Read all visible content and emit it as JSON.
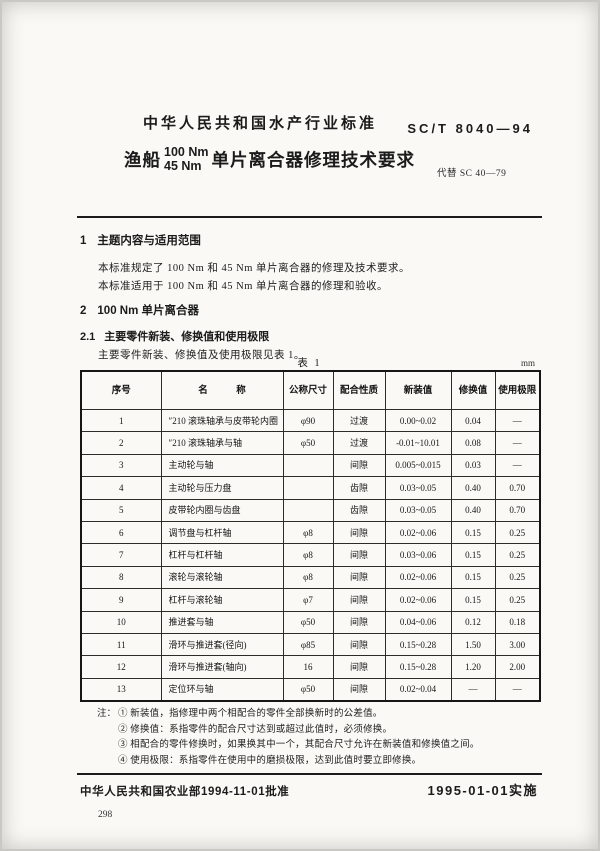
{
  "header": {
    "standard_type": "中华人民共和国水产行业标准",
    "standard_no": "SC/T 8040—94",
    "title_prefix": "渔船",
    "torque_top": "100 Nm",
    "torque_bottom": "45 Nm",
    "title_suffix": "单片离合器修理技术要求",
    "replaces": "代替 SC 40—79"
  },
  "section1": {
    "no": "1",
    "title": "主题内容与适用范围",
    "para1": "本标准规定了 100 Nm 和 45 Nm 单片离合器的修理及技术要求。",
    "para2": "本标准适用于 100 Nm 和 45 Nm 单片离合器的修理和验收。"
  },
  "section2": {
    "no": "2",
    "title": "100 Nm 单片离合器"
  },
  "section2_1": {
    "no": "2.1",
    "title": "主要零件新装、修换值和使用极限",
    "para": "主要零件新装、修换值及使用极限见表 1。"
  },
  "table": {
    "caption": "表 1",
    "unit": "mm",
    "headers": [
      "序号",
      "名　　　称",
      "公称尺寸",
      "配合性质",
      "新装值",
      "修换值",
      "使用极限"
    ],
    "col_keys": [
      "index",
      "name",
      "nominal-size",
      "fit-type",
      "new-value",
      "replace-value",
      "use-limit"
    ],
    "rows": [
      [
        "1",
        "″210 滚珠轴承与皮带轮内圈",
        "φ90",
        "过渡",
        "0.00~0.02",
        "0.04",
        "—"
      ],
      [
        "2",
        "″210 滚珠轴承与轴",
        "φ50",
        "过渡",
        "-0.01~10.01",
        "0.08",
        "—"
      ],
      [
        "3",
        "主动轮与轴",
        "",
        "间隙",
        "0.005~0.015",
        "0.03",
        "—"
      ],
      [
        "4",
        "主动轮与压力盘",
        "",
        "齿隙",
        "0.03~0.05",
        "0.40",
        "0.70"
      ],
      [
        "5",
        "皮带轮内圈与齿盘",
        "",
        "齿隙",
        "0.03~0.05",
        "0.40",
        "0.70"
      ],
      [
        "6",
        "调节盘与杠杆轴",
        "φ8",
        "间隙",
        "0.02~0.06",
        "0.15",
        "0.25"
      ],
      [
        "7",
        "杠杆与杠杆轴",
        "φ8",
        "间隙",
        "0.03~0.06",
        "0.15",
        "0.25"
      ],
      [
        "8",
        "滚轮与滚轮轴",
        "φ8",
        "间隙",
        "0.02~0.06",
        "0.15",
        "0.25"
      ],
      [
        "9",
        "杠杆与滚轮轴",
        "φ7",
        "间隙",
        "0.02~0.06",
        "0.15",
        "0.25"
      ],
      [
        "10",
        "推进套与轴",
        "φ50",
        "间隙",
        "0.04~0.06",
        "0.12",
        "0.18"
      ],
      [
        "11",
        "滑环与推进套(径向)",
        "φ85",
        "间隙",
        "0.15~0.28",
        "1.50",
        "3.00"
      ],
      [
        "12",
        "滑环与推进套(轴向)",
        "16",
        "间隙",
        "0.15~0.28",
        "1.20",
        "2.00"
      ],
      [
        "13",
        "定位环与轴",
        "φ50",
        "间隙",
        "0.02~0.04",
        "—",
        "—"
      ]
    ],
    "notes_label": "注：",
    "notes": [
      "① 新装值，指修理中两个相配合的零件全部换新时的公差值。",
      "② 修换值：系指零件的配合尺寸达到或超过此值时，必须修换。",
      "③ 相配合的零件修换时，如果换其中一个，其配合尺寸允许在新装值和修换值之间。",
      "④ 使用极限：系指零件在使用中的磨损极限，达到此值时要立即修换。"
    ]
  },
  "footer": {
    "approval": "中华人民共和国农业部1994-11-01批准",
    "implementation": "1995-01-01实施",
    "page_number": "298"
  }
}
